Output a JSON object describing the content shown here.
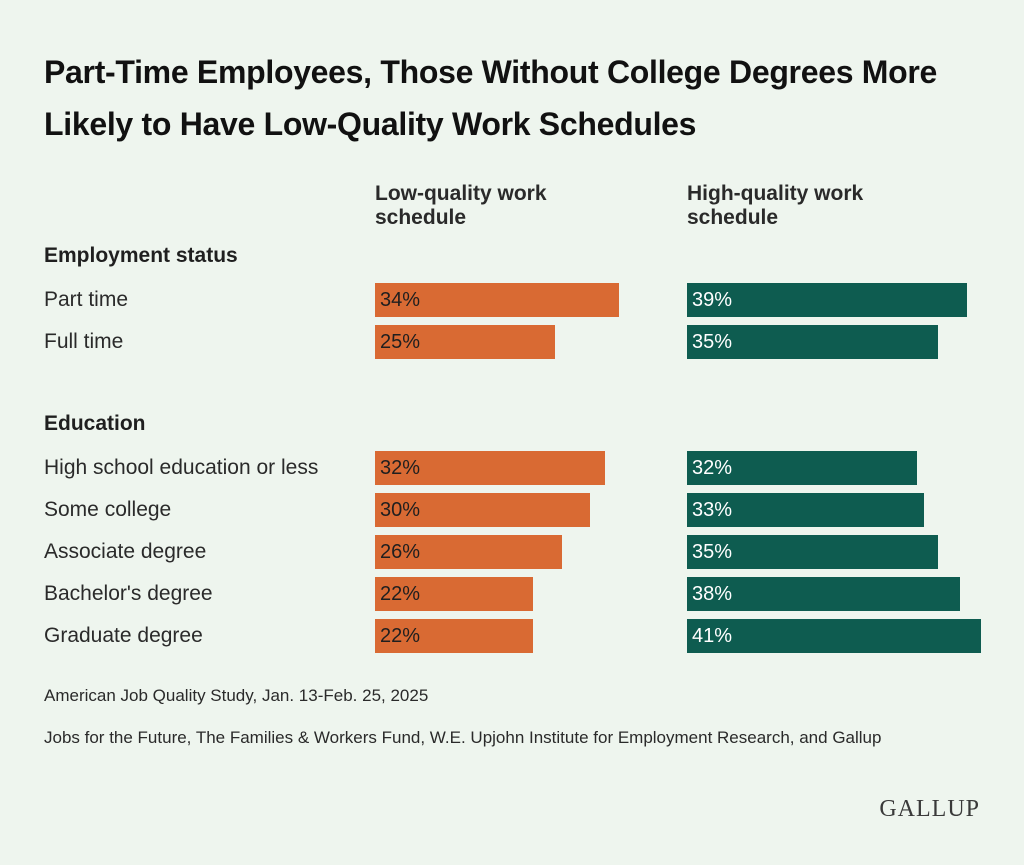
{
  "chart_data": {
    "type": "bar",
    "title": "Part-Time Employees, Those Without College Degrees More Likely to Have Low-Quality Work Schedules",
    "series": [
      {
        "name": "Low-quality work schedule",
        "color": "#d96a33"
      },
      {
        "name": "High-quality work schedule",
        "color": "#0e5c50"
      }
    ],
    "groups": [
      {
        "label": "Employment status",
        "rows": [
          {
            "category": "Part time",
            "low": 34,
            "high": 39
          },
          {
            "category": "Full time",
            "low": 25,
            "high": 35
          }
        ]
      },
      {
        "label": "Education",
        "rows": [
          {
            "category": "High school education or less",
            "low": 32,
            "high": 32
          },
          {
            "category": "Some college",
            "low": 30,
            "high": 33
          },
          {
            "category": "Associate degree",
            "low": 26,
            "high": 35
          },
          {
            "category": "Bachelor's degree",
            "low": 22,
            "high": 38
          },
          {
            "category": "Graduate degree",
            "low": 22,
            "high": 41
          }
        ]
      }
    ],
    "unit": "%"
  },
  "source": {
    "study": "American Job Quality Study, Jan. 13-Feb. 25, 2025",
    "partners": "Jobs for the Future, The Families & Workers Fund, W.E. Upjohn Institute for Employment Research, and Gallup"
  },
  "logo_text": "GALLUP"
}
